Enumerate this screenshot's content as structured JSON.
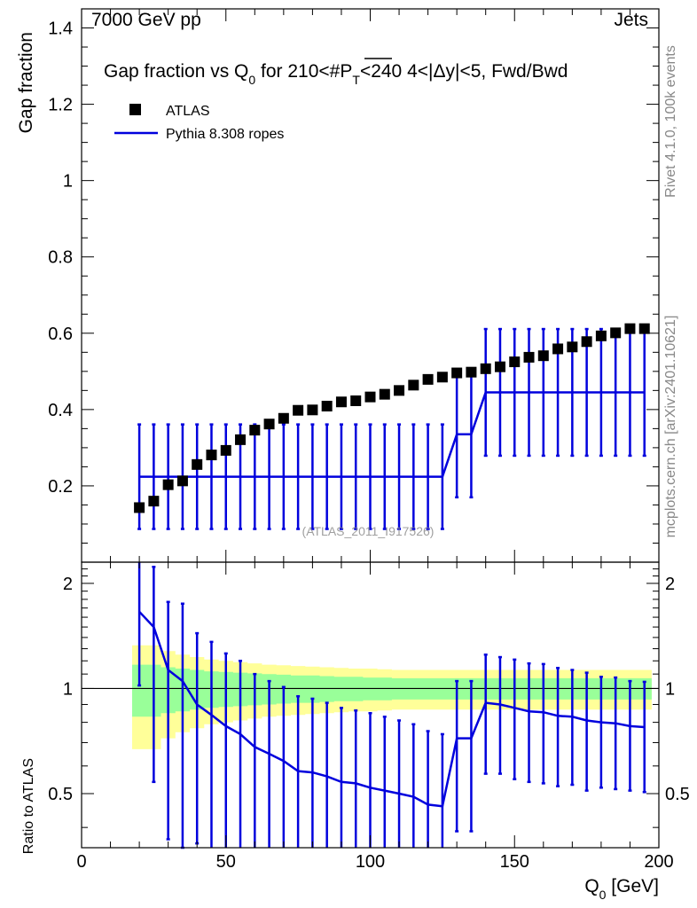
{
  "header": {
    "left": "7000 GeV pp",
    "right": "Jets"
  },
  "side": {
    "rivet": "Rivet 4.1.0,  100k events",
    "mcplots": "mcplots.cern.ch [arXiv:2401.10621]"
  },
  "chart_data": {
    "type": "scatter",
    "title": {
      "pre": "Gap fraction vs Q",
      "sub0": "0",
      "mid": " for 210<#",
      "pt": "P",
      "ptsub": "T",
      "post": "<240  4<|Δy|<5, Fwd/Bwd"
    },
    "watermark": "(ATLAS_2011_I917526)",
    "ylabel": "Gap fraction",
    "ratio_ylabel": "Ratio to ATLAS",
    "xlabel": {
      "main": "Q",
      "sub": "0",
      "unit": " [GeV]"
    },
    "xlim": [
      0,
      200
    ],
    "ylim": [
      0,
      1.45
    ],
    "ratio_ylim": [
      0.35,
      2.3
    ],
    "xticks": [
      0,
      50,
      100,
      150,
      200
    ],
    "yticks": [
      0.2,
      0.4,
      0.6,
      0.8,
      1,
      1.2,
      1.4
    ],
    "ytick_labels": [
      "0.2",
      "0.4",
      "0.6",
      "0.8",
      "1",
      "1.2",
      "1.4"
    ],
    "ratio_yticks": [
      0.5,
      1,
      2
    ],
    "ratio_ytick_labels": [
      "0.5",
      "1",
      "2"
    ],
    "legend": {
      "atlas": "ATLAS",
      "mc": "Pythia 8.308 ropes",
      "position": "top-left"
    },
    "x": [
      20,
      25,
      30,
      35,
      40,
      45,
      50,
      55,
      60,
      65,
      70,
      75,
      80,
      85,
      90,
      95,
      100,
      105,
      110,
      115,
      120,
      125,
      130,
      135,
      140,
      145,
      150,
      155,
      160,
      165,
      170,
      175,
      180,
      185,
      190,
      195
    ],
    "series": [
      {
        "name": "ATLAS",
        "values": [
          0.143,
          0.16,
          0.203,
          0.213,
          0.256,
          0.281,
          0.293,
          0.321,
          0.346,
          0.362,
          0.377,
          0.398,
          0.399,
          0.409,
          0.42,
          0.423,
          0.433,
          0.44,
          0.45,
          0.464,
          0.479,
          0.485,
          0.496,
          0.498,
          0.507,
          0.512,
          0.525,
          0.537,
          0.541,
          0.559,
          0.564,
          0.578,
          0.593,
          0.601,
          0.612,
          0.612
        ]
      },
      {
        "name": "Pythia 8.308 ropes",
        "values": [
          0.224,
          0.224,
          0.224,
          0.224,
          0.224,
          0.224,
          0.224,
          0.224,
          0.224,
          0.224,
          0.224,
          0.224,
          0.224,
          0.224,
          0.224,
          0.224,
          0.224,
          0.224,
          0.224,
          0.224,
          0.224,
          0.224,
          0.335,
          0.335,
          0.445,
          0.445,
          0.445,
          0.445,
          0.445,
          0.445,
          0.445,
          0.445,
          0.445,
          0.445,
          0.445,
          0.445
        ],
        "err_up": [
          0.137,
          0.137,
          0.137,
          0.137,
          0.137,
          0.137,
          0.137,
          0.137,
          0.137,
          0.137,
          0.137,
          0.137,
          0.137,
          0.137,
          0.137,
          0.137,
          0.137,
          0.137,
          0.137,
          0.137,
          0.137,
          0.137,
          0.165,
          0.165,
          0.166,
          0.166,
          0.166,
          0.166,
          0.166,
          0.166,
          0.166,
          0.166,
          0.166,
          0.166,
          0.166,
          0.166
        ],
        "err_down": [
          0.137,
          0.137,
          0.137,
          0.137,
          0.137,
          0.137,
          0.137,
          0.137,
          0.137,
          0.137,
          0.137,
          0.137,
          0.137,
          0.137,
          0.137,
          0.137,
          0.137,
          0.137,
          0.137,
          0.137,
          0.137,
          0.137,
          0.165,
          0.165,
          0.166,
          0.166,
          0.166,
          0.166,
          0.166,
          0.166,
          0.166,
          0.166,
          0.166,
          0.166,
          0.166,
          0.166
        ]
      }
    ],
    "ratio": {
      "values": [
        1.66,
        1.5,
        1.13,
        1.05,
        0.9,
        0.84,
        0.78,
        0.74,
        0.68,
        0.65,
        0.62,
        0.58,
        0.575,
        0.56,
        0.54,
        0.535,
        0.52,
        0.51,
        0.5,
        0.49,
        0.465,
        0.46,
        0.72,
        0.72,
        0.91,
        0.9,
        0.88,
        0.86,
        0.855,
        0.835,
        0.83,
        0.81,
        0.8,
        0.795,
        0.78,
        0.775
      ],
      "err_up": [
        0.74,
        0.73,
        0.64,
        0.7,
        0.54,
        0.52,
        0.48,
        0.46,
        0.42,
        0.4,
        0.39,
        0.37,
        0.36,
        0.35,
        0.34,
        0.33,
        0.33,
        0.32,
        0.31,
        0.3,
        0.29,
        0.28,
        0.33,
        0.33,
        0.34,
        0.33,
        0.33,
        0.32,
        0.32,
        0.31,
        0.3,
        0.3,
        0.28,
        0.28,
        0.27,
        0.27
      ],
      "err_down": [
        0.64,
        0.96,
        0.76,
        0.7,
        0.54,
        0.52,
        0.48,
        0.46,
        0.42,
        0.4,
        0.39,
        0.37,
        0.36,
        0.35,
        0.34,
        0.33,
        0.33,
        0.32,
        0.31,
        0.3,
        0.29,
        0.28,
        0.33,
        0.33,
        0.34,
        0.33,
        0.33,
        0.32,
        0.32,
        0.31,
        0.3,
        0.3,
        0.28,
        0.28,
        0.27,
        0.27
      ],
      "band_stat": [
        0.17,
        0.17,
        0.15,
        0.14,
        0.13,
        0.12,
        0.115,
        0.11,
        0.105,
        0.1,
        0.095,
        0.09,
        0.09,
        0.085,
        0.08,
        0.08,
        0.075,
        0.075,
        0.07,
        0.07,
        0.07,
        0.07,
        0.07,
        0.07,
        0.07,
        0.07,
        0.07,
        0.07,
        0.07,
        0.07,
        0.07,
        0.07,
        0.07,
        0.07,
        0.07,
        0.07
      ],
      "band_total": [
        0.33,
        0.33,
        0.28,
        0.25,
        0.23,
        0.21,
        0.2,
        0.19,
        0.18,
        0.17,
        0.165,
        0.16,
        0.155,
        0.15,
        0.145,
        0.14,
        0.14,
        0.135,
        0.13,
        0.13,
        0.13,
        0.13,
        0.13,
        0.13,
        0.13,
        0.13,
        0.13,
        0.13,
        0.13,
        0.13,
        0.13,
        0.13,
        0.13,
        0.13,
        0.13,
        0.13
      ]
    },
    "colors": {
      "mc": "#0000dd",
      "band_stat": "#99ff99",
      "band_total": "#ffff99",
      "data": "#000000"
    }
  }
}
